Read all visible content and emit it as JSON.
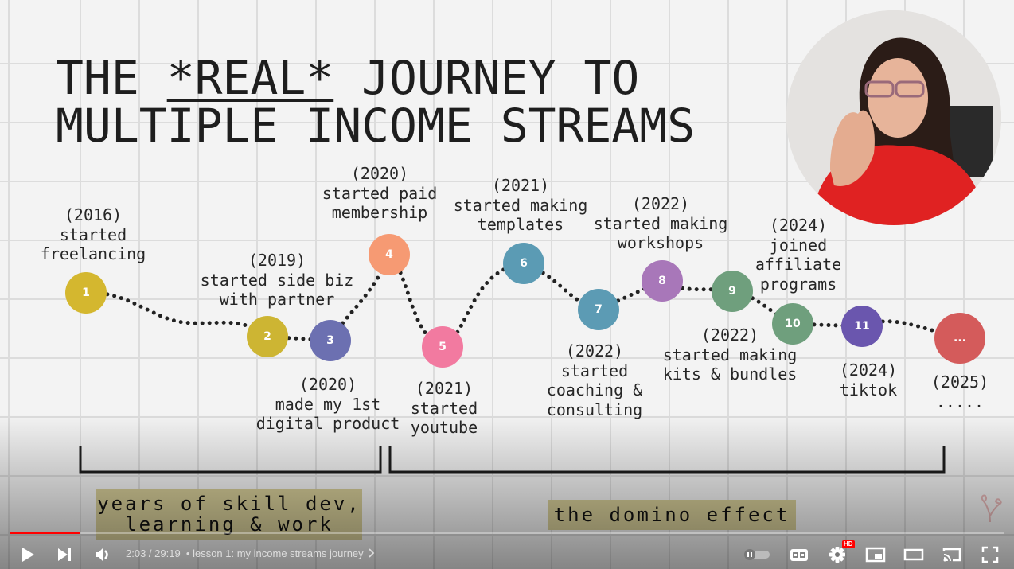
{
  "video": {
    "title_line1_pre": "THE ",
    "title_real": "*REAL*",
    "title_line1_post": " JOURNEY TO",
    "title_line2": "MULTIPLE INCOME STREAMS",
    "milestones": [
      {
        "number": "1",
        "color": "#d4b72f",
        "lines": [
          "(2016)",
          "started",
          "freelancing"
        ]
      },
      {
        "number": "2",
        "color": "#cdb533",
        "lines": [
          "(2019)",
          "started side biz",
          "with partner"
        ]
      },
      {
        "number": "3",
        "color": "#6c70b1",
        "lines": [
          "(2020)",
          "made my 1st",
          "digital product"
        ]
      },
      {
        "number": "4",
        "color": "#f69a73",
        "lines": [
          "(2020)",
          "started paid",
          "membership"
        ]
      },
      {
        "number": "5",
        "color": "#f27aa0",
        "lines": [
          "(2021)",
          "started",
          "youtube"
        ]
      },
      {
        "number": "6",
        "color": "#5b9bb4",
        "lines": [
          "(2021)",
          "started making",
          "templates"
        ]
      },
      {
        "number": "7",
        "color": "#5c9bb4",
        "lines": [
          "(2022)",
          "started",
          "coaching &",
          "consulting"
        ]
      },
      {
        "number": "8",
        "color": "#a877b9",
        "lines": [
          "(2022)",
          "started making",
          "workshops"
        ]
      },
      {
        "number": "9",
        "color": "#6f9f7d",
        "lines": [
          "(2022)",
          "started making",
          "kits & bundles"
        ]
      },
      {
        "number": "10",
        "color": "#6f9f7d",
        "lines": [
          "(2024)",
          "joined",
          "affiliate",
          "programs"
        ]
      },
      {
        "number": "11",
        "color": "#6a56ae",
        "lines": [
          "(2024)",
          "tiktok"
        ]
      },
      {
        "number": "...",
        "color": "#d45b5b",
        "lines": [
          "(2025)",
          "....."
        ]
      }
    ],
    "phase_left_line1": "years of skill dev,",
    "phase_left_line2": "learning & work",
    "phase_right": "the domino effect"
  },
  "player": {
    "current_time": "2:03",
    "duration": "29:19",
    "time_display": "2:03 / 29:19",
    "chapter": "• lesson 1: my income streams journey",
    "progress_fraction": 0.07,
    "hd_badge": "HD",
    "accent_color": "#ff0000"
  }
}
